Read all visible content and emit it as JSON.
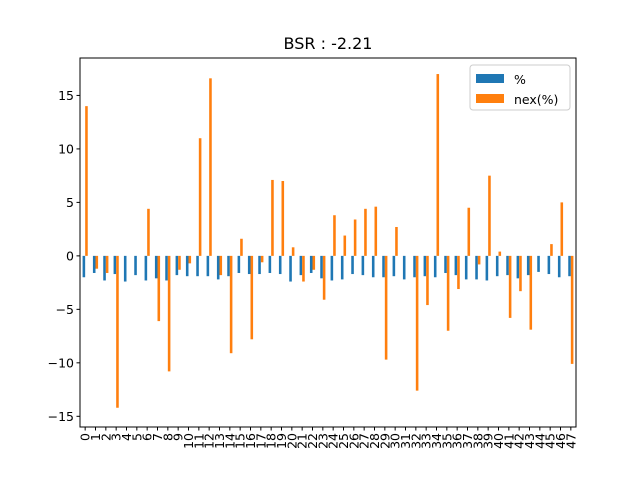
{
  "chart_data": {
    "type": "bar",
    "title": "BSR : -2.21",
    "xlabel": "",
    "ylabel": "",
    "ylim": [
      -16,
      18.5
    ],
    "yticks": [
      -15,
      -10,
      -5,
      0,
      5,
      10,
      15
    ],
    "ytick_labels": [
      "−15",
      "−10",
      "−5",
      "0",
      "5",
      "10",
      "15"
    ],
    "grid": false,
    "legend_position": "top-right",
    "categories": [
      "0",
      "1",
      "2",
      "3",
      "4",
      "5",
      "6",
      "7",
      "8",
      "9",
      "10",
      "11",
      "12",
      "13",
      "14",
      "15",
      "16",
      "17",
      "18",
      "19",
      "20",
      "21",
      "22",
      "23",
      "24",
      "25",
      "26",
      "27",
      "28",
      "29",
      "30",
      "31",
      "32",
      "33",
      "34",
      "35",
      "36",
      "37",
      "38",
      "39",
      "40",
      "41",
      "42",
      "43",
      "44",
      "45",
      "46",
      "47"
    ],
    "series": [
      {
        "name": "%",
        "color": "#1f77b4",
        "values": [
          -2.0,
          -1.6,
          -2.3,
          -1.7,
          -2.4,
          -1.8,
          -2.3,
          -2.1,
          -2.3,
          -1.8,
          -1.9,
          -1.9,
          -1.9,
          -2.2,
          -1.9,
          -1.6,
          -1.7,
          -1.7,
          -1.6,
          -1.7,
          -2.4,
          -1.8,
          -1.6,
          -2.1,
          -2.3,
          -2.2,
          -1.7,
          -1.8,
          -2.0,
          -2.0,
          -1.9,
          -2.2,
          -2.0,
          -1.9,
          -2.0,
          -1.6,
          -1.8,
          -2.2,
          -2.2,
          -2.3,
          -1.9,
          -1.8,
          -2.1,
          -1.8,
          -1.5,
          -1.7,
          -2.0,
          -1.9
        ]
      },
      {
        "name": "nex(%)",
        "color": "#ff7f0e",
        "values": [
          14.0,
          -1.2,
          -1.6,
          -14.2,
          0.0,
          0.0,
          4.4,
          -6.1,
          -10.8,
          -1.3,
          -0.7,
          11.0,
          16.6,
          -1.8,
          -9.1,
          1.6,
          -7.8,
          -0.6,
          7.1,
          7.0,
          0.8,
          -2.4,
          -1.3,
          -4.1,
          3.8,
          1.9,
          3.4,
          4.4,
          4.6,
          -9.7,
          2.7,
          0.0,
          -12.6,
          -4.6,
          17.0,
          -7.0,
          -3.1,
          4.5,
          -0.8,
          7.5,
          0.4,
          -5.8,
          -3.3,
          -6.9,
          0.0,
          1.1,
          5.0,
          -10.1
        ]
      }
    ]
  }
}
